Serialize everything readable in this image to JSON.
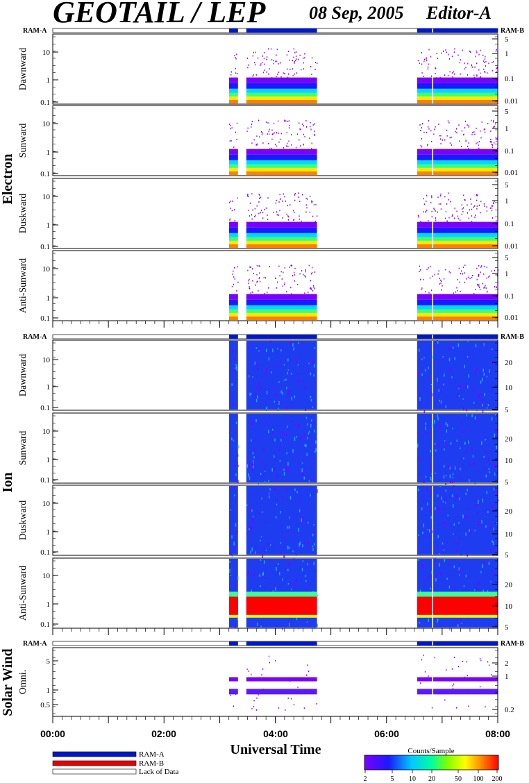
{
  "header": {
    "title": "GEOTAIL / LEP",
    "date": "08 Sep, 2005",
    "editor": "Editor-A"
  },
  "ram_labels": {
    "left": "RAM-A",
    "right": "RAM-B"
  },
  "groups": [
    {
      "name": "Electron"
    },
    {
      "name": "Ion"
    },
    {
      "name": "Solar Wind"
    }
  ],
  "x_axis": {
    "title": "Universal Time",
    "tick_labels": [
      "00:00",
      "02:00",
      "04:00",
      "06:00",
      "08:00"
    ]
  },
  "legend": {
    "items": [
      {
        "label": "RAM-A",
        "color": "#0018c8"
      },
      {
        "label": "RAM-B",
        "color": "#e80000"
      },
      {
        "label": "Lack of Data",
        "color": "#ffffff"
      }
    ]
  },
  "colorbar": {
    "title": "Counts/Sample",
    "tick_labels": [
      "2",
      "5",
      "10",
      "20",
      "50",
      "100",
      "200"
    ]
  },
  "chart_data": {
    "type": "heatmap",
    "x_range_hours": [
      0,
      8
    ],
    "data_intervals_hours": [
      [
        3.17,
        3.33
      ],
      [
        3.48,
        4.75
      ],
      [
        6.55,
        6.82
      ],
      [
        6.84,
        8.0
      ]
    ],
    "panels": [
      {
        "group": "Electron",
        "label": "Dawnward",
        "left_ticks": [
          "10",
          "1",
          "0.1"
        ],
        "right_ticks": [
          "5",
          "1",
          "0.1",
          "0.01"
        ]
      },
      {
        "group": "Electron",
        "label": "Sunward",
        "left_ticks": [
          "10",
          "1",
          "0.1"
        ],
        "right_ticks": [
          "5",
          "1",
          "0.1",
          "0.01"
        ]
      },
      {
        "group": "Electron",
        "label": "Duskward",
        "left_ticks": [
          "10",
          "1",
          "0.1"
        ],
        "right_ticks": [
          "5",
          "1",
          "0.1",
          "0.01"
        ]
      },
      {
        "group": "Electron",
        "label": "Anti-Sunward",
        "left_ticks": [
          "10",
          "1",
          "0.1"
        ],
        "right_ticks": [
          "5",
          "1",
          "0.1",
          "0.01"
        ]
      },
      {
        "group": "Ion",
        "label": "Dawnward",
        "left_ticks": [
          "10",
          "1",
          "0.1"
        ],
        "right_ticks": [
          "20",
          "10",
          "5"
        ]
      },
      {
        "group": "Ion",
        "label": "Sunward",
        "left_ticks": [
          "10",
          "1",
          "0.1"
        ],
        "right_ticks": [
          "20",
          "10",
          "5"
        ]
      },
      {
        "group": "Ion",
        "label": "Duskward",
        "left_ticks": [
          "10",
          "1",
          "0.1"
        ],
        "right_ticks": [
          "20",
          "10",
          "5"
        ]
      },
      {
        "group": "Ion",
        "label": "Anti-Sunward",
        "left_ticks": [
          "10",
          "1",
          "0.1"
        ],
        "right_ticks": [
          "20",
          "10",
          "5"
        ]
      },
      {
        "group": "Solar Wind",
        "label": "Omni.",
        "left_ticks": [
          "5",
          "1",
          "0.5"
        ],
        "right_ticks": [
          "2",
          "1",
          "0.2"
        ]
      }
    ]
  }
}
